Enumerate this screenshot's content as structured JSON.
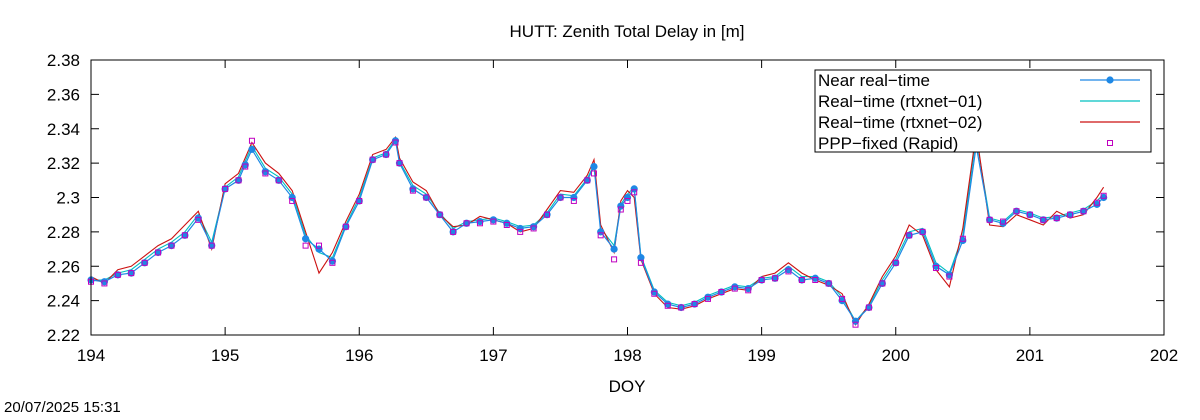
{
  "timestamp": "20/07/2025 15:31",
  "chart_data": {
    "type": "line",
    "title": "HUTT: Zenith Total Delay in [m]",
    "xlabel": "DOY",
    "ylabel": "",
    "xlim": [
      194,
      202
    ],
    "ylim": [
      2.22,
      2.38
    ],
    "xticks": [
      194,
      195,
      196,
      197,
      198,
      199,
      200,
      201,
      202
    ],
    "xtick_labels": [
      "194",
      "195",
      "196",
      "197",
      "198",
      "199",
      "200",
      "201",
      "202"
    ],
    "yticks": [
      2.22,
      2.24,
      2.26,
      2.28,
      2.3,
      2.32,
      2.34,
      2.36,
      2.38
    ],
    "ytick_labels": [
      "2.22",
      "2.24",
      "2.26",
      "2.28",
      "2.3",
      "2.32",
      "2.34",
      "2.36",
      "2.38"
    ],
    "grid": false,
    "legend_position": "top-right",
    "colors": {
      "near_real_time": "#1e88e5",
      "rtxnet01": "#00c0c0",
      "rtxnet02": "#cc1111",
      "ppp_fixed": "#c000c0"
    },
    "x": [
      194.0,
      194.1,
      194.2,
      194.3,
      194.4,
      194.5,
      194.6,
      194.7,
      194.8,
      194.9,
      195.0,
      195.1,
      195.15,
      195.2,
      195.3,
      195.4,
      195.5,
      195.6,
      195.7,
      195.8,
      195.9,
      196.0,
      196.1,
      196.2,
      196.27,
      196.3,
      196.4,
      196.5,
      196.6,
      196.7,
      196.8,
      196.9,
      197.0,
      197.1,
      197.2,
      197.3,
      197.4,
      197.5,
      197.6,
      197.7,
      197.75,
      197.8,
      197.9,
      197.95,
      198.0,
      198.05,
      198.1,
      198.2,
      198.3,
      198.4,
      198.5,
      198.6,
      198.7,
      198.8,
      198.9,
      199.0,
      199.1,
      199.2,
      199.3,
      199.4,
      199.5,
      199.6,
      199.7,
      199.8,
      199.9,
      200.0,
      200.1,
      200.2,
      200.3,
      200.4,
      200.5,
      200.6,
      200.7,
      200.8,
      200.9,
      201.0,
      201.1,
      201.2,
      201.3,
      201.4,
      201.5,
      201.55
    ],
    "series": [
      {
        "name": "Near real−time",
        "style": "linespoints",
        "values": [
          2.252,
          2.251,
          2.255,
          2.256,
          2.262,
          2.268,
          2.272,
          2.278,
          2.288,
          2.272,
          2.305,
          2.31,
          2.319,
          2.328,
          2.315,
          2.31,
          2.3,
          2.276,
          2.27,
          2.263,
          2.283,
          2.298,
          2.322,
          2.325,
          2.333,
          2.32,
          2.305,
          2.3,
          2.29,
          2.28,
          2.285,
          2.286,
          2.287,
          2.285,
          2.282,
          2.283,
          2.29,
          2.3,
          2.3,
          2.31,
          2.318,
          2.28,
          2.27,
          2.295,
          2.3,
          2.305,
          2.265,
          2.245,
          2.238,
          2.236,
          2.238,
          2.242,
          2.245,
          2.248,
          2.247,
          2.252,
          2.253,
          2.258,
          2.252,
          2.253,
          2.25,
          2.24,
          2.228,
          2.236,
          2.25,
          2.262,
          2.278,
          2.28,
          2.26,
          2.255,
          2.275,
          2.33,
          2.287,
          2.285,
          2.292,
          2.29,
          2.287,
          2.288,
          2.29,
          2.292,
          2.296,
          2.3
        ]
      },
      {
        "name": "Real−time (rtxnet−01)",
        "style": "lines",
        "values": [
          2.252,
          2.252,
          2.256,
          2.258,
          2.264,
          2.27,
          2.274,
          2.28,
          2.29,
          2.274,
          2.306,
          2.312,
          2.321,
          2.33,
          2.317,
          2.312,
          2.302,
          2.278,
          2.268,
          2.265,
          2.284,
          2.3,
          2.323,
          2.326,
          2.334,
          2.321,
          2.307,
          2.302,
          2.291,
          2.282,
          2.286,
          2.287,
          2.288,
          2.286,
          2.283,
          2.284,
          2.291,
          2.302,
          2.301,
          2.311,
          2.319,
          2.282,
          2.272,
          2.296,
          2.302,
          2.306,
          2.266,
          2.246,
          2.239,
          2.237,
          2.239,
          2.243,
          2.246,
          2.249,
          2.248,
          2.253,
          2.254,
          2.26,
          2.254,
          2.254,
          2.251,
          2.242,
          2.228,
          2.237,
          2.252,
          2.264,
          2.28,
          2.282,
          2.262,
          2.256,
          2.278,
          2.335,
          2.288,
          2.286,
          2.293,
          2.291,
          2.288,
          2.289,
          2.291,
          2.293,
          2.298,
          2.302
        ]
      },
      {
        "name": "Real−time (rtxnet−02)",
        "style": "lines",
        "values": [
          2.254,
          2.25,
          2.258,
          2.26,
          2.266,
          2.272,
          2.276,
          2.284,
          2.292,
          2.27,
          2.308,
          2.314,
          2.323,
          2.332,
          2.32,
          2.314,
          2.304,
          2.28,
          2.256,
          2.268,
          2.286,
          2.302,
          2.325,
          2.328,
          2.335,
          2.323,
          2.309,
          2.304,
          2.29,
          2.283,
          2.284,
          2.289,
          2.287,
          2.285,
          2.28,
          2.282,
          2.293,
          2.304,
          2.303,
          2.313,
          2.322,
          2.284,
          2.268,
          2.298,
          2.304,
          2.3,
          2.264,
          2.244,
          2.236,
          2.235,
          2.237,
          2.241,
          2.244,
          2.247,
          2.246,
          2.254,
          2.256,
          2.262,
          2.256,
          2.252,
          2.249,
          2.244,
          2.226,
          2.238,
          2.254,
          2.266,
          2.284,
          2.278,
          2.258,
          2.248,
          2.282,
          2.338,
          2.284,
          2.283,
          2.29,
          2.287,
          2.284,
          2.292,
          2.288,
          2.29,
          2.3,
          2.306
        ]
      },
      {
        "name": "PPP−fixed (Rapid)",
        "style": "points",
        "values": [
          2.251,
          2.25,
          2.255,
          2.256,
          2.262,
          2.268,
          2.272,
          2.278,
          2.287,
          2.272,
          2.305,
          2.31,
          2.318,
          2.333,
          2.314,
          2.31,
          2.298,
          2.272,
          2.272,
          2.262,
          2.283,
          2.298,
          2.322,
          2.325,
          2.332,
          2.32,
          2.304,
          2.3,
          2.29,
          2.28,
          2.285,
          2.285,
          2.286,
          2.284,
          2.28,
          2.282,
          2.29,
          2.3,
          2.298,
          2.31,
          2.314,
          2.278,
          2.264,
          2.293,
          2.298,
          2.303,
          2.262,
          2.244,
          2.237,
          2.236,
          2.238,
          2.241,
          2.245,
          2.247,
          2.246,
          2.252,
          2.253,
          2.257,
          2.252,
          2.252,
          2.25,
          2.241,
          2.226,
          2.236,
          2.25,
          2.262,
          2.278,
          2.28,
          2.259,
          2.254,
          2.276,
          2.331,
          2.287,
          2.286,
          2.292,
          2.29,
          2.287,
          2.288,
          2.29,
          2.292,
          2.297,
          2.301
        ]
      }
    ]
  }
}
